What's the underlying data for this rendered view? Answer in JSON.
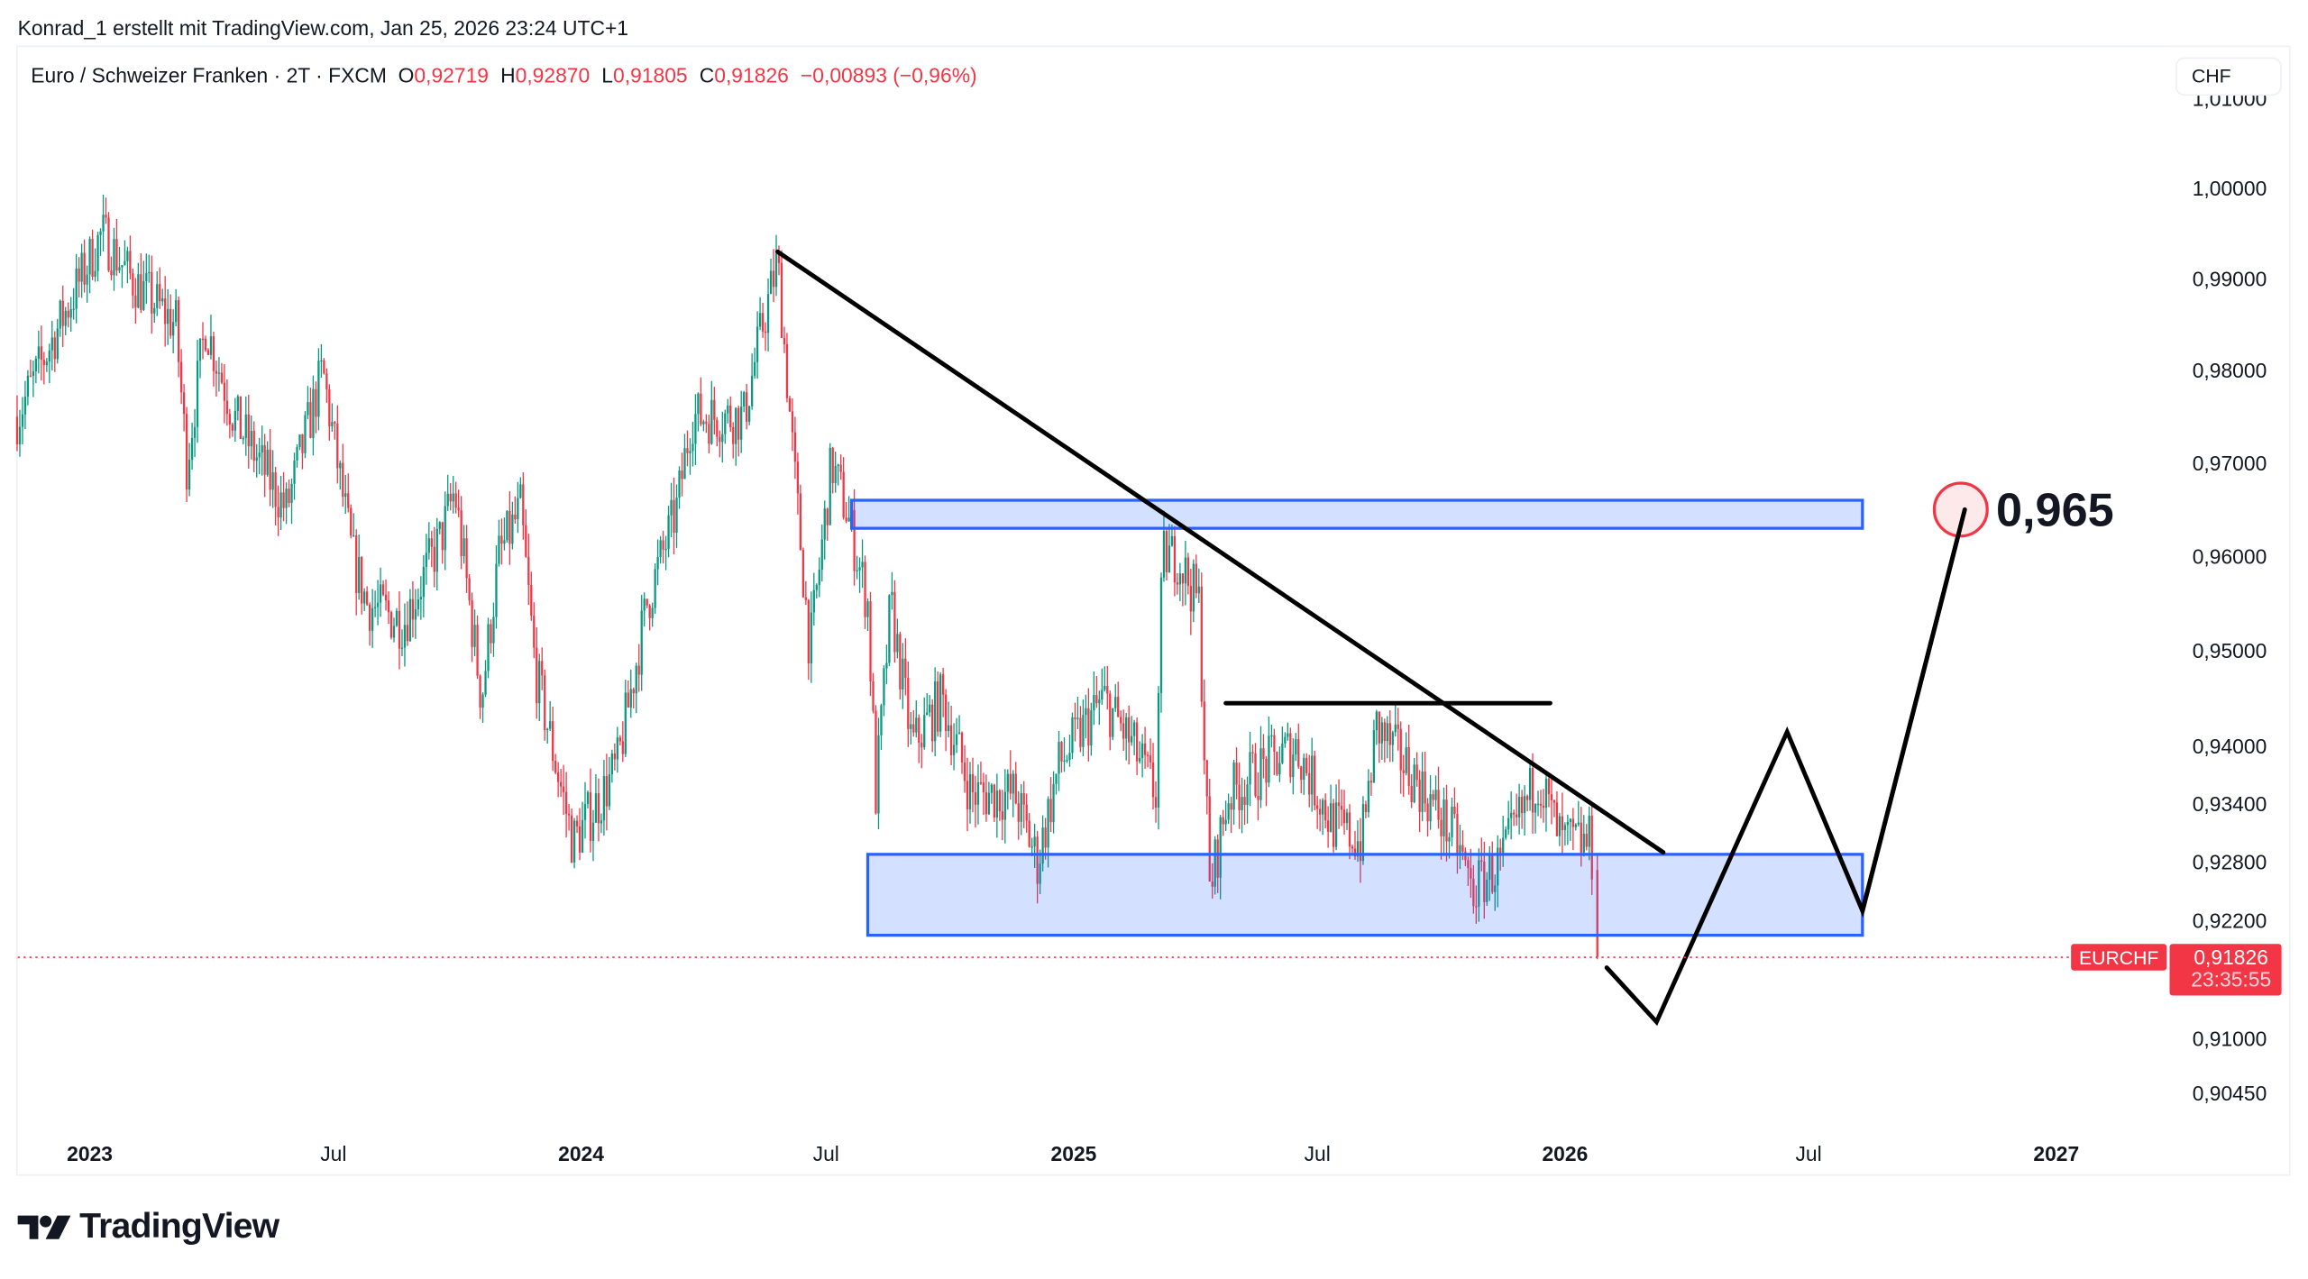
{
  "credit": "Konrad_1 erstellt mit TradingView.com, Jan 25, 2026 23:24 UTC+1",
  "legend": {
    "symbol": "Euro / Schweizer Franken · 2T · FXCM",
    "o_label": "O",
    "o": "0,92719",
    "h_label": "H",
    "h": "0,92870",
    "l_label": "L",
    "l": "0,91805",
    "c_label": "C",
    "c": "0,91826",
    "change": "−0,00893 (−0,96%)"
  },
  "currency_button": "CHF",
  "price_badge": {
    "symbol": "EURCHF",
    "price": "0,91826",
    "countdown": "23:35:55"
  },
  "target_label": "0,965",
  "logo_text": "TradingView",
  "colors": {
    "up": "#089981",
    "down": "#f23645",
    "zone": "#2962ff",
    "drawing": "#000000"
  },
  "chart_data": {
    "type": "candlestick",
    "interval": "2T",
    "scale": "log",
    "ylim": [
      0.902,
      1.0095
    ],
    "xlim": [
      "2022-11-01",
      "2027-04-01"
    ],
    "y_ticks": [
      "1,01000",
      "1,00000",
      "0,99000",
      "0,98000",
      "0,97000",
      "0,96000",
      "0,95000",
      "0,94000",
      "0,93400",
      "0,92800",
      "0,92200",
      "0,91000",
      "0,90450"
    ],
    "y_tick_values": [
      1.01,
      1.0,
      0.99,
      0.98,
      0.97,
      0.96,
      0.95,
      0.94,
      0.934,
      0.928,
      0.922,
      0.91,
      0.9045
    ],
    "x_ticks": [
      {
        "label": "2023",
        "date": "2023-01-01",
        "bold": true
      },
      {
        "label": "Jul",
        "date": "2023-07-01",
        "bold": false
      },
      {
        "label": "2024",
        "date": "2024-01-01",
        "bold": true
      },
      {
        "label": "Jul",
        "date": "2024-07-01",
        "bold": false
      },
      {
        "label": "2025",
        "date": "2025-01-01",
        "bold": true
      },
      {
        "label": "Jul",
        "date": "2025-07-01",
        "bold": false
      },
      {
        "label": "2026",
        "date": "2026-01-01",
        "bold": true
      },
      {
        "label": "Jul",
        "date": "2026-07-01",
        "bold": false
      },
      {
        "label": "2027",
        "date": "2027-01-01",
        "bold": true
      }
    ],
    "close_path": [
      [
        "2022-11-08",
        0.975
      ],
      [
        "2023-01-10",
        0.995
      ],
      [
        "2023-02-01",
        0.99
      ],
      [
        "2023-03-06",
        0.985
      ],
      [
        "2023-03-14",
        0.97
      ],
      [
        "2023-03-28",
        0.985
      ],
      [
        "2023-04-18",
        0.975
      ],
      [
        "2023-05-27",
        0.965
      ],
      [
        "2023-06-23",
        0.98
      ],
      [
        "2023-07-15",
        0.96
      ],
      [
        "2023-07-26",
        0.955
      ],
      [
        "2023-08-22",
        0.953
      ],
      [
        "2023-09-19",
        0.962
      ],
      [
        "2023-09-29",
        0.967
      ],
      [
        "2023-10-19",
        0.945
      ],
      [
        "2023-11-01",
        0.96
      ],
      [
        "2023-11-17",
        0.965
      ],
      [
        "2023-11-28",
        0.948
      ],
      [
        "2023-12-26",
        0.93
      ],
      [
        "2024-01-17",
        0.935
      ],
      [
        "2024-01-28",
        0.938
      ],
      [
        "2024-02-19",
        0.955
      ],
      [
        "2024-03-12",
        0.965
      ],
      [
        "2024-03-23",
        0.975
      ],
      [
        "2024-04-14",
        0.975
      ],
      [
        "2024-05-01",
        0.975
      ],
      [
        "2024-05-12",
        0.983
      ],
      [
        "2024-05-26",
        0.992
      ],
      [
        "2024-06-08",
        0.968
      ],
      [
        "2024-06-19",
        0.95
      ],
      [
        "2024-07-05",
        0.97
      ],
      [
        "2024-07-16",
        0.965
      ],
      [
        "2024-08-01",
        0.955
      ],
      [
        "2024-08-07",
        0.935
      ],
      [
        "2024-08-18",
        0.955
      ],
      [
        "2024-09-03",
        0.94
      ],
      [
        "2024-09-25",
        0.945
      ],
      [
        "2024-10-17",
        0.935
      ],
      [
        "2024-11-18",
        0.935
      ],
      [
        "2024-12-05",
        0.928
      ],
      [
        "2024-12-21",
        0.938
      ],
      [
        "2025-01-23",
        0.945
      ],
      [
        "2025-02-14",
        0.94
      ],
      [
        "2025-03-03",
        0.935
      ],
      [
        "2025-03-08",
        0.96
      ],
      [
        "2025-03-19",
        0.96
      ],
      [
        "2025-04-04",
        0.955
      ],
      [
        "2025-04-12",
        0.925
      ],
      [
        "2025-04-26",
        0.935
      ],
      [
        "2025-05-24",
        0.938
      ],
      [
        "2025-06-15",
        0.94
      ],
      [
        "2025-07-12",
        0.932
      ],
      [
        "2025-08-03",
        0.93
      ],
      [
        "2025-08-14",
        0.942
      ],
      [
        "2025-09-10",
        0.937
      ],
      [
        "2025-10-13",
        0.93
      ],
      [
        "2025-10-24",
        0.925
      ],
      [
        "2025-11-15",
        0.928
      ],
      [
        "2025-12-12",
        0.937
      ],
      [
        "2025-12-29",
        0.93
      ],
      [
        "2026-01-19",
        0.93
      ],
      [
        "2026-01-23",
        0.92719
      ],
      [
        "2026-01-25",
        0.91826
      ]
    ],
    "last_candle": {
      "open": 0.92719,
      "high": 0.9287,
      "low": 0.91805,
      "close": 0.91826
    },
    "current_price": 0.91826,
    "drawings": {
      "trendline": [
        [
          "2024-05-26",
          0.993
        ],
        [
          "2026-03-15",
          0.929
        ]
      ],
      "resistance_zone": {
        "from": "2024-07-20",
        "to": "2026-08-10",
        "top": 0.966,
        "bottom": 0.963
      },
      "support_zone": {
        "from": "2024-08-01",
        "to": "2026-08-10",
        "top": 0.9288,
        "bottom": 0.9205
      },
      "horizontal_line": {
        "from": "2025-04-24",
        "to": "2025-12-21",
        "price": 0.9445
      },
      "projection": [
        [
          "2026-02-01",
          0.9172
        ],
        [
          "2026-03-10",
          0.9117
        ],
        [
          "2026-06-15",
          0.9415
        ],
        [
          "2026-08-10",
          0.923
        ],
        [
          "2026-10-25",
          0.965
        ]
      ],
      "target": {
        "date": "2026-10-22",
        "price": 0.965
      }
    }
  }
}
